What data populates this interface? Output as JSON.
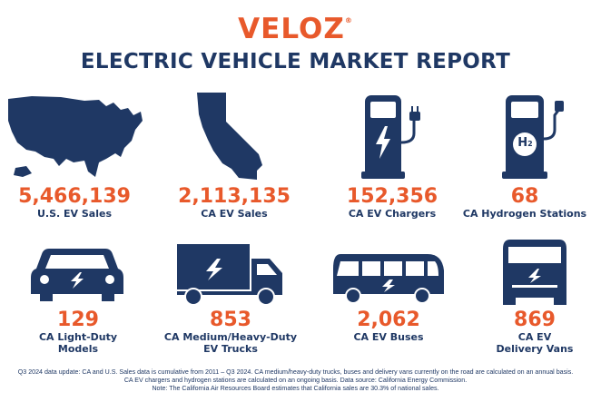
{
  "brand": {
    "name": "VELOZ",
    "mark": "®"
  },
  "title": "ELECTRIC VEHICLE MARKET REPORT",
  "colors": {
    "accent": "#e8592b",
    "navy": "#1f3864"
  },
  "stats": [
    {
      "value": "5,466,139",
      "label_line1": "U.S. EV Sales",
      "label_line2": "",
      "icon": "us-map-icon"
    },
    {
      "value": "2,113,135",
      "label_line1": "CA EV Sales",
      "label_line2": "",
      "icon": "california-map-icon"
    },
    {
      "value": "152,356",
      "label_line1": "CA EV Chargers",
      "label_line2": "",
      "icon": "ev-charger-icon"
    },
    {
      "value": "68",
      "label_line1": "CA Hydrogen Stations",
      "label_line2": "",
      "icon": "hydrogen-station-icon"
    },
    {
      "value": "129",
      "label_line1": "CA Light-Duty",
      "label_line2": "Models",
      "icon": "car-icon"
    },
    {
      "value": "853",
      "label_line1": "CA Medium/Heavy-Duty",
      "label_line2": "EV Trucks",
      "icon": "truck-icon"
    },
    {
      "value": "2,062",
      "label_line1": "CA EV Buses",
      "label_line2": "",
      "icon": "bus-icon"
    },
    {
      "value": "869",
      "label_line1": "CA EV",
      "label_line2": "Delivery Vans",
      "icon": "van-icon"
    }
  ],
  "h2_label": "H",
  "h2_sub": "2",
  "footnote": {
    "line1": "Q3 2024 data update: CA and U.S. Sales data is cumulative from 2011 – Q3 2024. CA medium/heavy-duty trucks, buses and delivery vans currently on the road are calculated on an annual basis.",
    "line2": "CA EV chargers and hydrogen stations are calculated on an ongoing basis. Data source: California Energy Commission.",
    "line3": "Note: The California Air Resources Board estimates that California sales are 30.3% of national sales."
  }
}
